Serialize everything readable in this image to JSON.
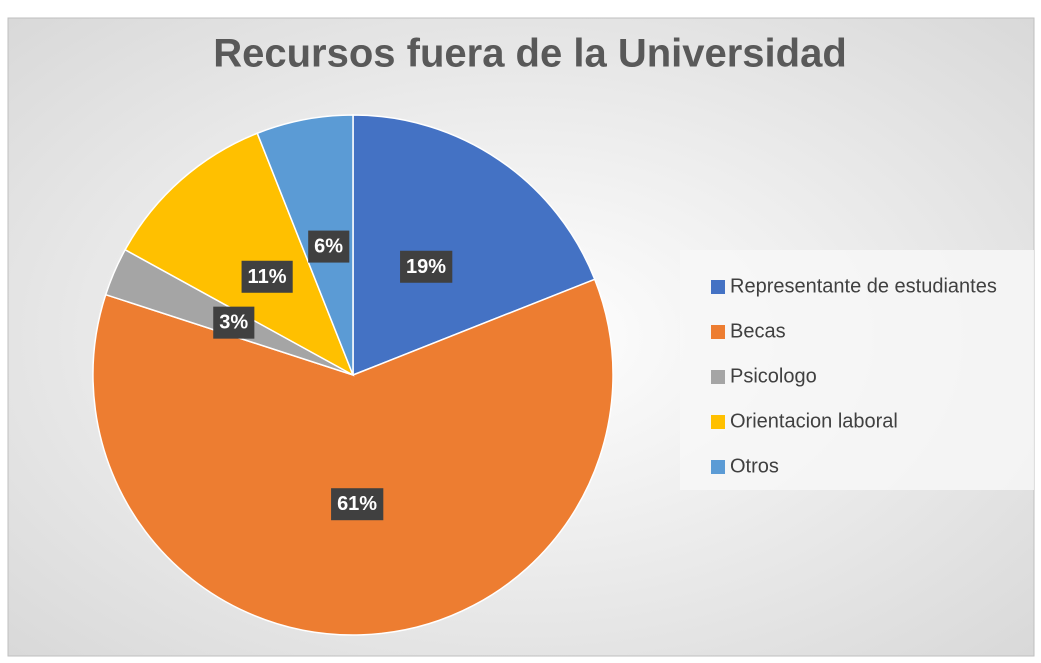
{
  "chart_data": {
    "type": "pie",
    "title": "Recursos fuera de la Universidad",
    "categories": [
      "Representante de estudiantes",
      "Becas",
      "Psicologo",
      "Orientacion laboral",
      "Otros"
    ],
    "values": [
      19,
      61,
      3,
      11,
      6
    ],
    "value_labels": [
      "19%",
      "61%",
      "3%",
      "11%",
      "6%"
    ],
    "colors": [
      "#4472c4",
      "#ed7d31",
      "#a5a5a5",
      "#ffc000",
      "#5b9bd5"
    ],
    "legend": "right"
  }
}
